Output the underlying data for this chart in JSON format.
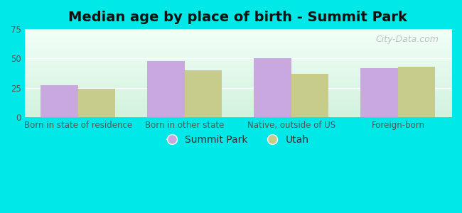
{
  "title": "Median age by place of birth - Summit Park",
  "categories": [
    "Born in state of residence",
    "Born in other state",
    "Native, outside of US",
    "Foreign-born"
  ],
  "summit_park": [
    27,
    48,
    50,
    42
  ],
  "utah": [
    24,
    40,
    37,
    43
  ],
  "summit_park_color": "#c9a8e0",
  "utah_color": "#c8cc8a",
  "ylim": [
    0,
    75
  ],
  "yticks": [
    0,
    25,
    50,
    75
  ],
  "legend_summit_park": "Summit Park",
  "legend_utah": "Utah",
  "fig_bg_color": "#00e8e8",
  "bar_width": 0.35,
  "title_fontsize": 14,
  "tick_fontsize": 8.5,
  "legend_fontsize": 10,
  "watermark": "City-Data.com"
}
